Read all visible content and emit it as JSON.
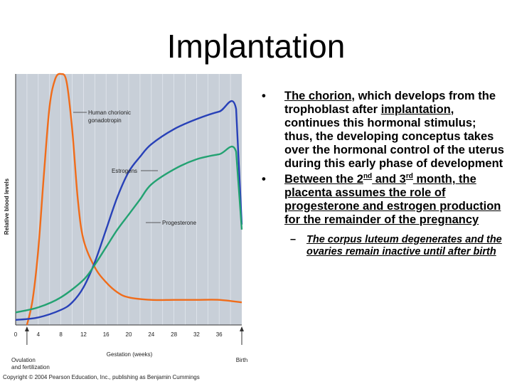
{
  "slide": {
    "title": "Implantation",
    "bullets": [
      {
        "parts": [
          {
            "text": "The chorion",
            "u": true
          },
          {
            "text": ", which develops from the trophoblast after "
          },
          {
            "text": "implantation",
            "u": true
          },
          {
            "text": ", continues this hormonal stimulus; thus, the developing conceptus takes over the hormonal control of the uterus during this early phase of development"
          }
        ]
      },
      {
        "parts": [
          {
            "text": "Between the 2",
            "u": true
          },
          {
            "text": "nd",
            "u": true,
            "sup": true
          },
          {
            "text": " and 3",
            "u": true
          },
          {
            "text": "rd",
            "u": true,
            "sup": true
          },
          {
            "text": " month, the placenta assumes the role of progesterone and estrogen production for the remainder of the pregnancy",
            "u": true
          }
        ],
        "sub": "The corpus luteum degenerates and the ovaries remain inactive until after birth"
      }
    ],
    "bullet_char": "•",
    "dash_char": "–"
  },
  "chart_data": {
    "type": "line",
    "ylabel": "Relative blood levels",
    "xlabel": "Gestation (weeks)",
    "x_ticks": [
      0,
      4,
      8,
      12,
      16,
      20,
      24,
      28,
      32,
      36
    ],
    "xlim": [
      0,
      40
    ],
    "ylim": [
      0,
      100
    ],
    "markers": [
      {
        "label": "Ovulation and fertilization",
        "x": 2
      },
      {
        "label": "Birth",
        "x": 40
      }
    ],
    "series": [
      {
        "name": "Human chorionic gonadotropin",
        "color": "#f06c1a",
        "x": [
          2,
          3,
          4,
          5,
          6,
          7,
          8,
          9,
          10,
          11,
          12,
          14,
          16,
          18,
          20,
          24,
          28,
          32,
          36,
          40
        ],
        "y": [
          0,
          10,
          30,
          60,
          87,
          98,
          100,
          97,
          78,
          50,
          34,
          23,
          17,
          13,
          11,
          10,
          10,
          10,
          10,
          9
        ]
      },
      {
        "name": "Estrogens",
        "color": "#2841b8",
        "x": [
          0,
          4,
          8,
          10,
          12,
          14,
          16,
          18,
          20,
          22,
          24,
          28,
          32,
          36,
          39,
          40
        ],
        "y": [
          2,
          3,
          6,
          9,
          15,
          25,
          38,
          51,
          61,
          67,
          72,
          78,
          82,
          85,
          86,
          40
        ]
      },
      {
        "name": "Progesterone",
        "color": "#23a272",
        "x": [
          0,
          4,
          8,
          12,
          14,
          16,
          18,
          20,
          22,
          24,
          28,
          32,
          36,
          39,
          40
        ],
        "y": [
          5,
          7,
          11,
          18,
          24,
          31,
          38,
          44,
          50,
          56,
          62,
          66,
          68,
          69,
          38
        ]
      }
    ],
    "copyright": "Copyright © 2004 Pearson Education, Inc., publishing as Benjamin Cummings"
  },
  "colors": {
    "plot_bg": "#c8cfd8",
    "grid": "#e2e7ee"
  }
}
